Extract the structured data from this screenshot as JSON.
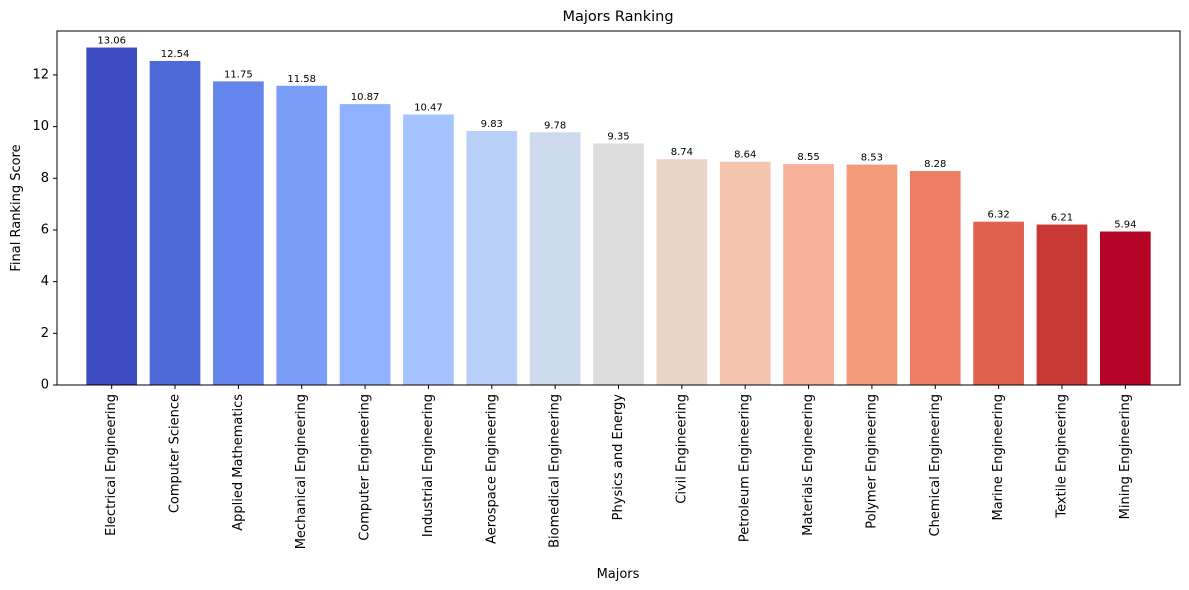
{
  "chart_data": {
    "type": "bar",
    "title": "Majors Ranking",
    "xlabel": "Majors",
    "ylabel": "Final Ranking Score",
    "ylim": [
      0,
      13.7
    ],
    "yticks": [
      0,
      2,
      4,
      6,
      8,
      10,
      12
    ],
    "grid": false,
    "legend": "none",
    "categories": [
      "Electrical Engineering",
      "Computer Science",
      "Applied Mathematics",
      "Mechanical Engineering",
      "Computer Engineering",
      "Industrial Engineering",
      "Aerospace Engineering",
      "Biomedical Engineering",
      "Physics and Energy",
      "Civil Engineering",
      "Petroleum Engineering",
      "Materials Engineering",
      "Polymer Engineering",
      "Chemical Engineering",
      "Marine Engineering",
      "Textile Engineering",
      "Mining Engineering"
    ],
    "values": [
      13.06,
      12.54,
      11.75,
      11.58,
      10.87,
      10.47,
      9.83,
      9.78,
      9.35,
      8.74,
      8.64,
      8.55,
      8.53,
      8.28,
      6.32,
      6.21,
      5.94
    ],
    "value_labels": [
      "13.06",
      "12.54",
      "11.75",
      "11.58",
      "10.87",
      "10.47",
      "9.83",
      "9.78",
      "9.35",
      "8.74",
      "8.64",
      "8.55",
      "8.53",
      "8.28",
      "6.32",
      "6.21",
      "5.94"
    ],
    "colors": [
      "#3b4cc0",
      "#5069d8",
      "#6485ec",
      "#7a9df8",
      "#8fb1fe",
      "#a5c3fe",
      "#bad0f8",
      "#cdd9ec",
      "#dddcdc",
      "#ebd3c6",
      "#f4c4ac",
      "#f6b09a",
      "#f39a7b",
      "#ec7f63",
      "#e0614c",
      "#c83835",
      "#b40426"
    ]
  }
}
